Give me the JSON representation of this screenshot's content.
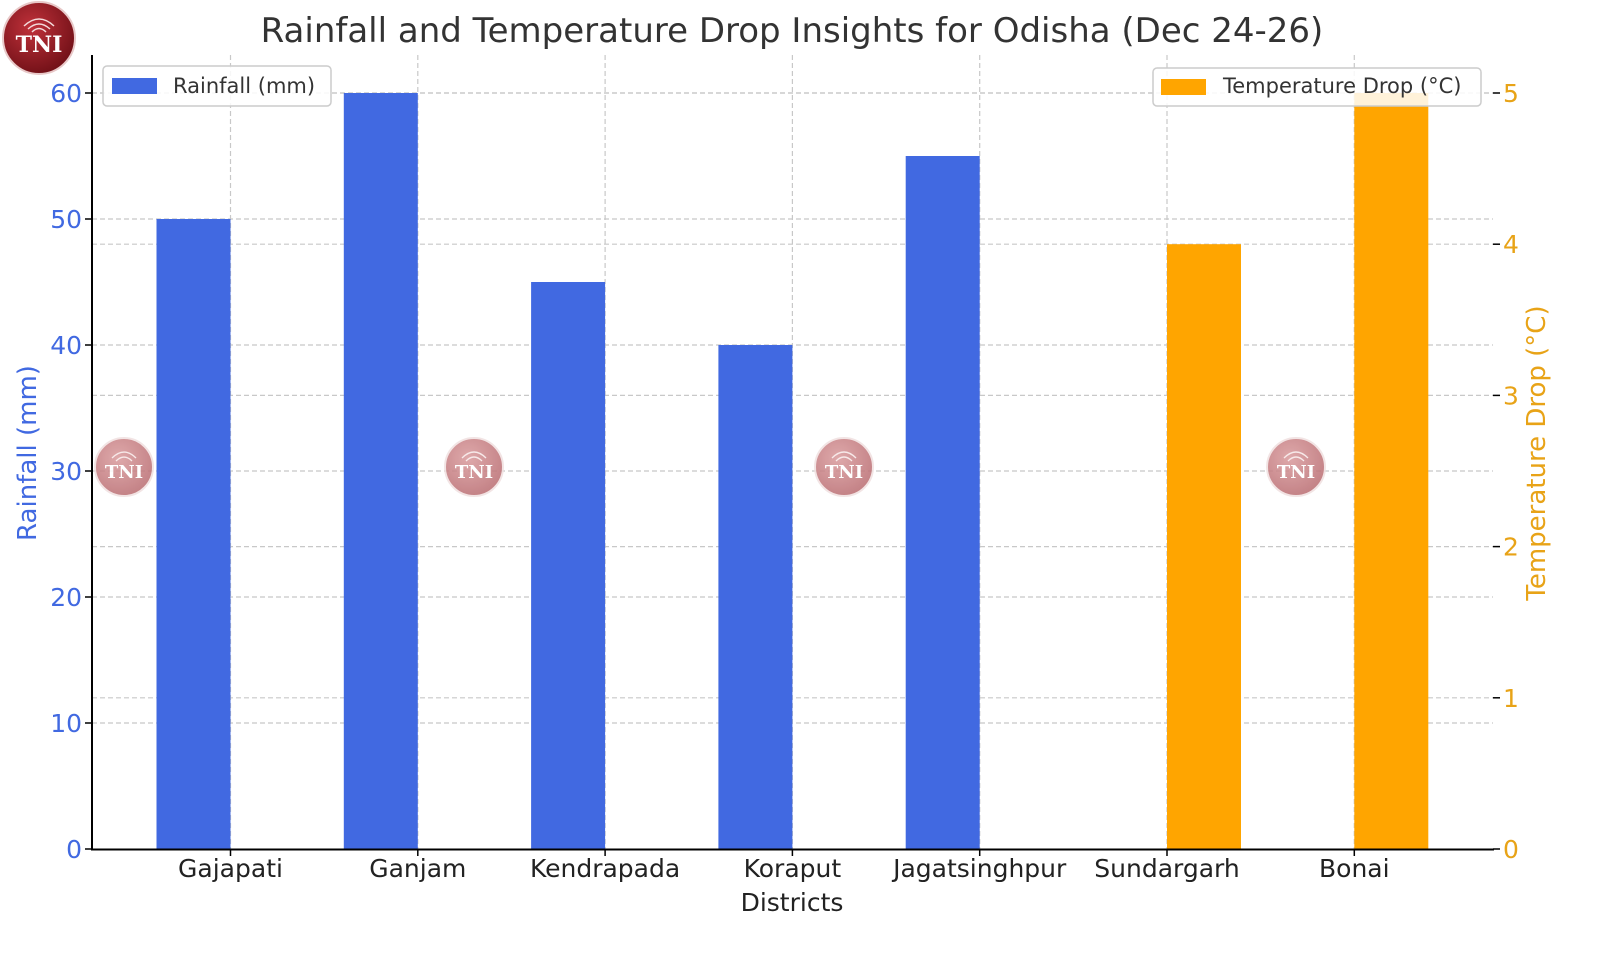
{
  "logo": {
    "text": "TNI"
  },
  "watermark": {
    "text": "TNI"
  },
  "chart_data": {
    "type": "bar",
    "title": "Rainfall and Temperature Drop Insights for Odisha (Dec 24-26)",
    "xlabel": "Districts",
    "categories": [
      "Gajapati",
      "Ganjam",
      "Kendrapada",
      "Koraput",
      "Jagatsinghpur",
      "Sundargarh",
      "Bonai"
    ],
    "series": [
      {
        "name": "Rainfall (mm)",
        "axis": "left",
        "color": "#4169E1",
        "values": [
          50,
          60,
          45,
          40,
          55,
          null,
          null
        ]
      },
      {
        "name": "Temperature Drop (°C)",
        "axis": "right",
        "color": "#FFA500",
        "values": [
          null,
          null,
          null,
          null,
          null,
          4,
          5
        ]
      }
    ],
    "y_left": {
      "label": "Rainfall (mm)",
      "range": [
        0,
        60
      ],
      "ticks": [
        0,
        10,
        20,
        30,
        40,
        50,
        60
      ],
      "color": "#4169E1"
    },
    "y_right": {
      "label": "Temperature Drop (°C)",
      "range": [
        0,
        5
      ],
      "ticks": [
        0,
        1,
        2,
        3,
        4,
        5
      ],
      "color": "#E8A317"
    },
    "grid": true,
    "legends": [
      {
        "series": "Rainfall (mm)",
        "placement": "top-left"
      },
      {
        "series": "Temperature Drop (°C)",
        "placement": "top-right"
      }
    ]
  }
}
